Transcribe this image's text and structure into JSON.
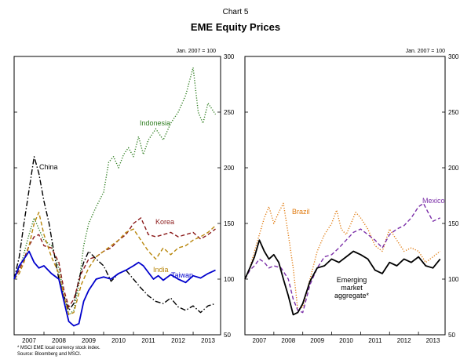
{
  "chart_number": "Chart 5",
  "title": "EME Equity Prices",
  "footnote": "* MSCI EME local currency stock index.",
  "source": "Source: Bloomberg and MSCI.",
  "chart_data": [
    {
      "type": "line",
      "unit_label": "Jan. 2007 = 100",
      "ylim": [
        50,
        300
      ],
      "yticks": [
        50,
        100,
        150,
        200,
        250,
        300
      ],
      "xlim": [
        2007.0,
        2013.92
      ],
      "xticks": [
        "2007",
        "2008",
        "2009",
        "2010",
        "2011",
        "2012",
        "2013"
      ],
      "grid": false,
      "series": [
        {
          "name": "Indonesia",
          "color": "#2e7d1f",
          "dash": "dotted",
          "x": [
            2007.0,
            2007.25,
            2007.5,
            2007.67,
            2007.83,
            2008.0,
            2008.25,
            2008.5,
            2008.67,
            2008.83,
            2009.0,
            2009.17,
            2009.33,
            2009.5,
            2009.75,
            2010.0,
            2010.17,
            2010.33,
            2010.5,
            2010.67,
            2010.83,
            2011.0,
            2011.17,
            2011.33,
            2011.5,
            2011.75,
            2012.0,
            2012.25,
            2012.5,
            2012.75,
            2013.0,
            2013.17,
            2013.33,
            2013.5,
            2013.75
          ],
          "y": [
            100,
            115,
            140,
            155,
            145,
            135,
            130,
            110,
            85,
            68,
            72,
            95,
            130,
            150,
            165,
            178,
            205,
            210,
            200,
            212,
            218,
            210,
            228,
            212,
            225,
            235,
            225,
            240,
            250,
            265,
            290,
            250,
            240,
            258,
            248
          ]
        },
        {
          "name": "China",
          "color": "#000000",
          "dash": "dashdot",
          "x": [
            2007.0,
            2007.17,
            2007.33,
            2007.5,
            2007.67,
            2007.83,
            2008.0,
            2008.17,
            2008.33,
            2008.5,
            2008.67,
            2008.83,
            2009.0,
            2009.17,
            2009.33,
            2009.5,
            2009.75,
            2010.0,
            2010.25,
            2010.5,
            2010.75,
            2011.0,
            2011.25,
            2011.5,
            2011.75,
            2012.0,
            2012.25,
            2012.5,
            2012.75,
            2013.0,
            2013.25,
            2013.5,
            2013.75
          ],
          "y": [
            100,
            120,
            150,
            180,
            210,
            195,
            170,
            150,
            125,
            100,
            85,
            72,
            78,
            100,
            115,
            125,
            118,
            112,
            98,
            105,
            108,
            100,
            92,
            85,
            80,
            78,
            83,
            75,
            72,
            76,
            70,
            76,
            78
          ]
        },
        {
          "name": "Korea",
          "color": "#8b1a1a",
          "dash": "dashed",
          "x": [
            2007.0,
            2007.17,
            2007.33,
            2007.5,
            2007.67,
            2007.83,
            2008.0,
            2008.25,
            2008.5,
            2008.67,
            2008.83,
            2009.0,
            2009.25,
            2009.5,
            2009.75,
            2010.0,
            2010.25,
            2010.5,
            2010.75,
            2011.0,
            2011.25,
            2011.5,
            2011.75,
            2012.0,
            2012.25,
            2012.5,
            2012.75,
            2013.0,
            2013.25,
            2013.5,
            2013.75
          ],
          "y": [
            100,
            108,
            118,
            130,
            138,
            140,
            130,
            128,
            115,
            90,
            75,
            82,
            105,
            118,
            120,
            125,
            128,
            135,
            140,
            150,
            155,
            140,
            138,
            140,
            142,
            138,
            140,
            142,
            136,
            140,
            145
          ]
        },
        {
          "name": "India",
          "color": "#b8860b",
          "dash": "dashed",
          "x": [
            2007.0,
            2007.17,
            2007.33,
            2007.5,
            2007.67,
            2007.83,
            2008.0,
            2008.25,
            2008.5,
            2008.67,
            2008.83,
            2009.0,
            2009.25,
            2009.5,
            2009.75,
            2010.0,
            2010.25,
            2010.5,
            2010.75,
            2011.0,
            2011.25,
            2011.5,
            2011.75,
            2012.0,
            2012.25,
            2012.5,
            2012.75,
            2013.0,
            2013.25,
            2013.5,
            2013.75
          ],
          "y": [
            100,
            105,
            115,
            130,
            150,
            160,
            140,
            120,
            105,
            85,
            68,
            70,
            95,
            110,
            120,
            125,
            130,
            135,
            142,
            145,
            135,
            125,
            118,
            128,
            122,
            128,
            130,
            135,
            138,
            142,
            148
          ]
        },
        {
          "name": "Taiwan",
          "color": "#0000cc",
          "dash": "solid",
          "x": [
            2007.0,
            2007.17,
            2007.33,
            2007.5,
            2007.67,
            2007.83,
            2008.0,
            2008.25,
            2008.5,
            2008.67,
            2008.83,
            2009.0,
            2009.17,
            2009.33,
            2009.5,
            2009.75,
            2010.0,
            2010.25,
            2010.5,
            2010.75,
            2011.0,
            2011.17,
            2011.33,
            2011.5,
            2011.67,
            2011.83,
            2012.0,
            2012.25,
            2012.5,
            2012.75,
            2013.0,
            2013.25,
            2013.5,
            2013.75
          ],
          "y": [
            100,
            112,
            118,
            125,
            115,
            110,
            112,
            105,
            100,
            80,
            62,
            58,
            60,
            80,
            90,
            100,
            102,
            100,
            105,
            108,
            112,
            115,
            112,
            106,
            100,
            103,
            99,
            104,
            100,
            97,
            103,
            101,
            105,
            108
          ]
        }
      ],
      "labels": {
        "Indonesia": "Indonesia",
        "China": "China",
        "Korea": "Korea",
        "India": "India",
        "Taiwan": "Taiwan"
      }
    },
    {
      "type": "line",
      "unit_label": "Jan. 2007 = 100",
      "ylim": [
        50,
        300
      ],
      "yticks": [
        50,
        100,
        150,
        200,
        250,
        300
      ],
      "xlim": [
        2007.0,
        2013.92
      ],
      "xticks": [
        "2007",
        "2008",
        "2009",
        "2010",
        "2011",
        "2012",
        "2013"
      ],
      "grid": false,
      "series": [
        {
          "name": "Brazil",
          "color": "#e07b10",
          "dash": "dotted",
          "x": [
            2007.0,
            2007.17,
            2007.33,
            2007.5,
            2007.67,
            2007.83,
            2008.0,
            2008.17,
            2008.33,
            2008.5,
            2008.67,
            2008.83,
            2009.0,
            2009.25,
            2009.5,
            2009.75,
            2010.0,
            2010.17,
            2010.33,
            2010.5,
            2010.67,
            2010.83,
            2011.0,
            2011.25,
            2011.5,
            2011.75,
            2012.0,
            2012.25,
            2012.5,
            2012.75,
            2013.0,
            2013.25,
            2013.5,
            2013.75
          ],
          "y": [
            100,
            110,
            125,
            140,
            155,
            165,
            150,
            160,
            168,
            140,
            110,
            72,
            75,
            100,
            125,
            140,
            150,
            162,
            145,
            140,
            150,
            160,
            155,
            145,
            130,
            125,
            145,
            135,
            125,
            128,
            125,
            115,
            120,
            125
          ]
        },
        {
          "name": "Mexico",
          "color": "#7b2fa8",
          "dash": "dashed",
          "x": [
            2007.0,
            2007.17,
            2007.33,
            2007.5,
            2007.67,
            2007.83,
            2008.0,
            2008.25,
            2008.5,
            2008.67,
            2008.83,
            2009.0,
            2009.25,
            2009.5,
            2009.75,
            2010.0,
            2010.25,
            2010.5,
            2010.75,
            2011.0,
            2011.25,
            2011.5,
            2011.75,
            2012.0,
            2012.25,
            2012.5,
            2012.75,
            2013.0,
            2013.17,
            2013.33,
            2013.5,
            2013.75
          ],
          "y": [
            100,
            108,
            112,
            118,
            115,
            110,
            112,
            110,
            100,
            82,
            72,
            70,
            95,
            110,
            120,
            122,
            128,
            135,
            142,
            145,
            140,
            135,
            128,
            140,
            145,
            148,
            155,
            165,
            168,
            160,
            152,
            155
          ]
        },
        {
          "name": "Emerging market aggregate*",
          "color": "#000000",
          "dash": "solid",
          "x": [
            2007.0,
            2007.17,
            2007.33,
            2007.5,
            2007.67,
            2007.83,
            2008.0,
            2008.17,
            2008.33,
            2008.5,
            2008.67,
            2008.83,
            2009.0,
            2009.25,
            2009.5,
            2009.75,
            2010.0,
            2010.25,
            2010.5,
            2010.75,
            2011.0,
            2011.25,
            2011.5,
            2011.75,
            2012.0,
            2012.25,
            2012.5,
            2012.75,
            2013.0,
            2013.25,
            2013.5,
            2013.75
          ],
          "y": [
            100,
            110,
            120,
            135,
            125,
            118,
            122,
            115,
            100,
            85,
            68,
            70,
            78,
            98,
            110,
            112,
            118,
            115,
            120,
            125,
            122,
            118,
            108,
            105,
            115,
            112,
            118,
            115,
            120,
            112,
            110,
            118
          ]
        }
      ],
      "labels": {
        "Brazil": "Brazil",
        "Mexico": "Mexico",
        "Emerging market aggregate*": [
          "Emerging",
          "market",
          "aggregate*"
        ]
      }
    }
  ]
}
